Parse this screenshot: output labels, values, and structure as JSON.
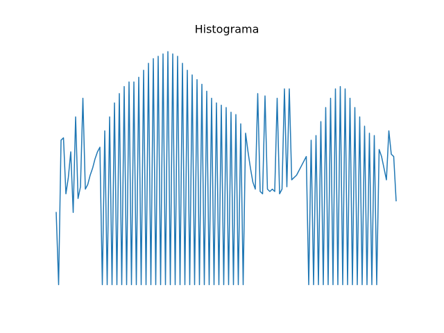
{
  "chart_data": {
    "type": "line",
    "title": "Histograma",
    "x": [
      0,
      1,
      2,
      3,
      4,
      5,
      6,
      7,
      8,
      9,
      10,
      11,
      12,
      13,
      14,
      15,
      16,
      17,
      18,
      19,
      20,
      21,
      22,
      23,
      24,
      25,
      26,
      27,
      28,
      29,
      30,
      31,
      32,
      33,
      34,
      35,
      36,
      37,
      38,
      39,
      40,
      41,
      42,
      43,
      44,
      45,
      46,
      47,
      48,
      49,
      50,
      51,
      52,
      53,
      54,
      55,
      56,
      57,
      58,
      59,
      60,
      61,
      62,
      63,
      64,
      65,
      66,
      67,
      68,
      69,
      70,
      71,
      72,
      73,
      74,
      75,
      76,
      77,
      78,
      79,
      80,
      81,
      82,
      83,
      84,
      85,
      86,
      87,
      88,
      89,
      90,
      91,
      92,
      93,
      94,
      95,
      96,
      97,
      98,
      99,
      100,
      101,
      102,
      103,
      104,
      105,
      106,
      107,
      108,
      109,
      110,
      111,
      112,
      113,
      114,
      115,
      116,
      117,
      118,
      119,
      120,
      121,
      122,
      123,
      124,
      125,
      126,
      127,
      128,
      129,
      130,
      131,
      132,
      133,
      134,
      135,
      136,
      137,
      138,
      139,
      140
    ],
    "series": [
      {
        "color": "#1f77b4",
        "values": [
          31,
          0,
          62,
          63,
          39,
          46,
          57,
          31,
          72,
          37,
          42,
          80,
          41,
          43,
          47,
          50,
          54,
          57,
          59,
          0,
          66,
          0,
          72,
          0,
          78,
          0,
          82,
          0,
          85,
          0,
          87,
          0,
          87,
          0,
          89,
          0,
          92,
          0,
          95,
          0,
          97,
          0,
          98,
          0,
          99,
          0,
          100,
          0,
          99,
          0,
          98,
          0,
          95,
          0,
          92,
          0,
          90,
          0,
          88,
          0,
          86,
          0,
          83,
          0,
          80,
          0,
          78,
          0,
          77,
          0,
          76,
          0,
          74,
          0,
          73,
          0,
          69,
          0,
          65,
          57,
          50,
          44,
          41,
          82,
          40,
          39,
          81,
          41,
          40,
          41,
          40,
          80,
          39,
          41,
          84,
          42,
          84,
          45,
          46,
          47,
          49,
          51,
          53,
          55,
          0,
          62,
          0,
          64,
          0,
          70,
          0,
          76,
          0,
          80,
          0,
          84,
          0,
          85,
          0,
          84,
          0,
          80,
          0,
          76,
          0,
          72,
          0,
          68,
          0,
          65,
          0,
          64,
          0,
          58,
          55,
          50,
          45,
          66,
          56,
          55,
          36
        ]
      }
    ],
    "xlim": [
      0,
      140
    ],
    "ylim": [
      -5,
      105
    ]
  }
}
